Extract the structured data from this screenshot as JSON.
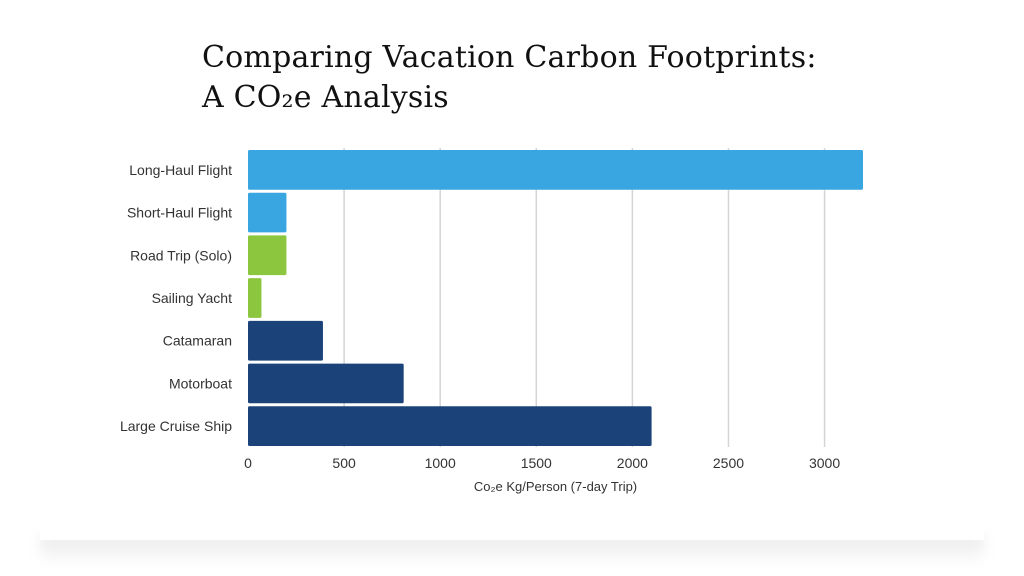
{
  "title_line1": "Comparing Vacation Carbon Footprints:",
  "title_line2": "A CO₂e Analysis",
  "chart_data": {
    "type": "bar",
    "orientation": "horizontal",
    "categories": [
      "Long-Haul Flight",
      "Short-Haul Flight",
      "Road Trip (Solo)",
      "Sailing Yacht",
      "Catamaran",
      "Motorboat",
      "Large Cruise Ship"
    ],
    "values": [
      3200,
      200,
      200,
      70,
      390,
      810,
      2100
    ],
    "colors": [
      "#3aa6e1",
      "#3aa6e1",
      "#8cc63f",
      "#8cc63f",
      "#1c4379",
      "#1c4379",
      "#1c4379"
    ],
    "xlabel": "Co₂e Kg/Person (7-day Trip)",
    "xticks": [
      0,
      500,
      1000,
      1500,
      2000,
      2500,
      3000
    ],
    "xlim": [
      0,
      3200
    ],
    "grid": "vertical"
  }
}
